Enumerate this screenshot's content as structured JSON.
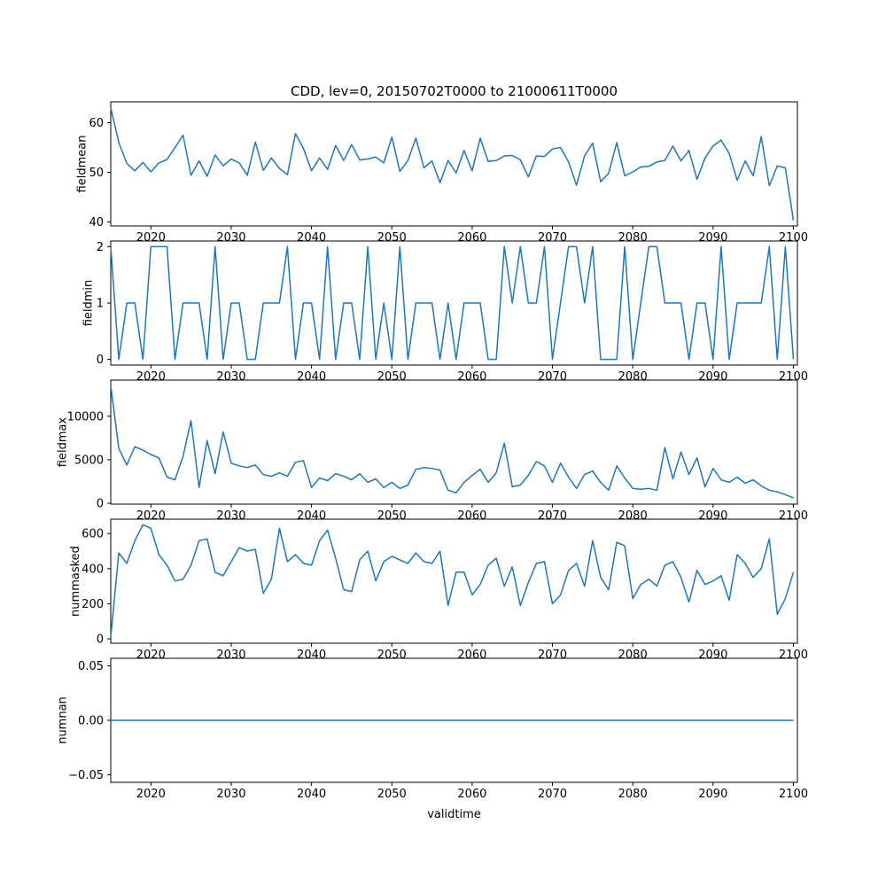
{
  "figure": {
    "title": "CDD, lev=0, 20150702T0000 to 21000611T0000",
    "xlabel": "validtime",
    "background": "#ffffff",
    "line_color": "#1f77b4"
  },
  "x_axis": {
    "start": 2015,
    "step": 1,
    "lim": [
      2015,
      2100.5
    ],
    "ticks": [
      {
        "v": 2020,
        "label": "2020"
      },
      {
        "v": 2030,
        "label": "2030"
      },
      {
        "v": 2040,
        "label": "2040"
      },
      {
        "v": 2050,
        "label": "2050"
      },
      {
        "v": 2060,
        "label": "2060"
      },
      {
        "v": 2070,
        "label": "2070"
      },
      {
        "v": 2080,
        "label": "2080"
      },
      {
        "v": 2090,
        "label": "2090"
      },
      {
        "v": 2100,
        "label": "2100"
      }
    ]
  },
  "chart_data": [
    {
      "type": "line",
      "ylabel": "fieldmean",
      "ylim": [
        39.2,
        64.2
      ],
      "yticks": [
        {
          "v": 40,
          "label": "40"
        },
        {
          "v": 50,
          "label": "50"
        },
        {
          "v": 60,
          "label": "60"
        }
      ],
      "values": [
        63.0,
        56.0,
        51.8,
        50.3,
        52.0,
        50.1,
        51.9,
        52.6,
        55.0,
        57.5,
        49.4,
        52.3,
        49.2,
        53.5,
        51.3,
        52.7,
        51.9,
        49.4,
        56.1,
        50.4,
        52.9,
        50.8,
        49.5,
        57.8,
        54.8,
        50.3,
        52.9,
        50.6,
        55.4,
        52.4,
        55.6,
        52.5,
        52.7,
        53.1,
        51.9,
        57.1,
        50.2,
        52.4,
        56.9,
        50.9,
        52.3,
        47.9,
        52.4,
        49.9,
        54.4,
        50.3,
        56.9,
        52.2,
        52.4,
        53.3,
        53.4,
        52.5,
        49.1,
        53.3,
        53.2,
        54.7,
        55.0,
        52.1,
        47.4,
        53.3,
        55.9,
        48.1,
        49.8,
        56.0,
        49.3,
        50.1,
        51.1,
        51.2,
        52.1,
        52.4,
        55.3,
        52.3,
        54.4,
        48.6,
        52.9,
        55.3,
        56.5,
        53.8,
        48.4,
        52.3,
        49.3,
        57.2,
        47.3,
        51.3,
        50.9,
        40.3
      ]
    },
    {
      "type": "line",
      "ylabel": "fieldmin",
      "ylim": [
        -0.1,
        2.1
      ],
      "yticks": [
        {
          "v": 0,
          "label": "0"
        },
        {
          "v": 1,
          "label": "1"
        },
        {
          "v": 2,
          "label": "2"
        }
      ],
      "values": [
        2,
        0,
        1,
        1,
        0,
        2,
        2,
        2,
        0,
        1,
        1,
        1,
        0,
        2,
        0,
        1,
        1,
        0,
        0,
        1,
        1,
        1,
        2,
        0,
        1,
        1,
        0,
        2,
        0,
        1,
        1,
        0,
        2,
        0,
        1,
        0,
        2,
        0,
        1,
        1,
        1,
        0,
        1,
        0,
        1,
        1,
        1,
        0,
        0,
        2,
        1,
        2,
        1,
        1,
        2,
        0,
        1,
        2,
        2,
        1,
        2,
        0,
        0,
        0,
        2,
        0,
        1,
        2,
        2,
        1,
        1,
        1,
        0,
        1,
        1,
        0,
        2,
        0,
        1,
        1,
        1,
        1,
        2,
        0,
        2,
        0
      ]
    },
    {
      "type": "line",
      "ylabel": "fieldmax",
      "ylim": [
        -100,
        14150
      ],
      "yticks": [
        {
          "v": 0,
          "label": "0"
        },
        {
          "v": 5000,
          "label": "5000"
        },
        {
          "v": 10000,
          "label": "10000"
        }
      ],
      "values": [
        13500,
        6300,
        4400,
        6500,
        6100,
        5600,
        5200,
        3000,
        2700,
        5400,
        9500,
        1800,
        7200,
        3400,
        8200,
        4600,
        4300,
        4100,
        4400,
        3300,
        3100,
        3500,
        3100,
        4700,
        4900,
        1800,
        2900,
        2600,
        3400,
        3100,
        2700,
        3400,
        2400,
        2800,
        1800,
        2400,
        1700,
        2100,
        3900,
        4100,
        4000,
        3800,
        1500,
        1200,
        2400,
        3200,
        3900,
        2400,
        3500,
        6900,
        1900,
        2100,
        3200,
        4800,
        4300,
        2400,
        4600,
        3000,
        1700,
        3300,
        3700,
        2400,
        1500,
        4300,
        2900,
        1700,
        1600,
        1700,
        1500,
        6400,
        2800,
        5900,
        3300,
        5200,
        1900,
        4000,
        2700,
        2400,
        3000,
        2300,
        2700,
        2000,
        1500,
        1300,
        1000,
        600
      ]
    },
    {
      "type": "line",
      "ylabel": "nummasked",
      "ylim": [
        -25,
        682
      ],
      "yticks": [
        {
          "v": 0,
          "label": "0"
        },
        {
          "v": 200,
          "label": "200"
        },
        {
          "v": 400,
          "label": "400"
        },
        {
          "v": 600,
          "label": "600"
        }
      ],
      "values": [
        10,
        490,
        430,
        560,
        650,
        630,
        480,
        420,
        330,
        340,
        420,
        560,
        570,
        380,
        360,
        440,
        520,
        500,
        510,
        260,
        340,
        630,
        440,
        480,
        430,
        420,
        560,
        620,
        460,
        280,
        270,
        450,
        500,
        330,
        440,
        470,
        450,
        430,
        490,
        440,
        430,
        500,
        190,
        380,
        380,
        250,
        310,
        420,
        460,
        300,
        410,
        190,
        320,
        430,
        440,
        200,
        250,
        390,
        430,
        300,
        560,
        350,
        280,
        550,
        530,
        230,
        310,
        340,
        300,
        420,
        440,
        350,
        210,
        390,
        310,
        330,
        360,
        220,
        480,
        430,
        350,
        400,
        570,
        140,
        230,
        380
      ]
    },
    {
      "type": "line",
      "ylabel": "numnan",
      "ylim": [
        -0.057,
        0.057
      ],
      "yticks": [
        {
          "v": -0.05,
          "label": "−0.05"
        },
        {
          "v": 0,
          "label": "0.00"
        },
        {
          "v": 0.05,
          "label": "0.05"
        }
      ],
      "values": [
        0,
        0,
        0,
        0,
        0,
        0,
        0,
        0,
        0,
        0,
        0,
        0,
        0,
        0,
        0,
        0,
        0,
        0,
        0,
        0,
        0,
        0,
        0,
        0,
        0,
        0,
        0,
        0,
        0,
        0,
        0,
        0,
        0,
        0,
        0,
        0,
        0,
        0,
        0,
        0,
        0,
        0,
        0,
        0,
        0,
        0,
        0,
        0,
        0,
        0,
        0,
        0,
        0,
        0,
        0,
        0,
        0,
        0,
        0,
        0,
        0,
        0,
        0,
        0,
        0,
        0,
        0,
        0,
        0,
        0,
        0,
        0,
        0,
        0,
        0,
        0,
        0,
        0,
        0,
        0,
        0,
        0,
        0,
        0,
        0,
        0
      ]
    }
  ]
}
